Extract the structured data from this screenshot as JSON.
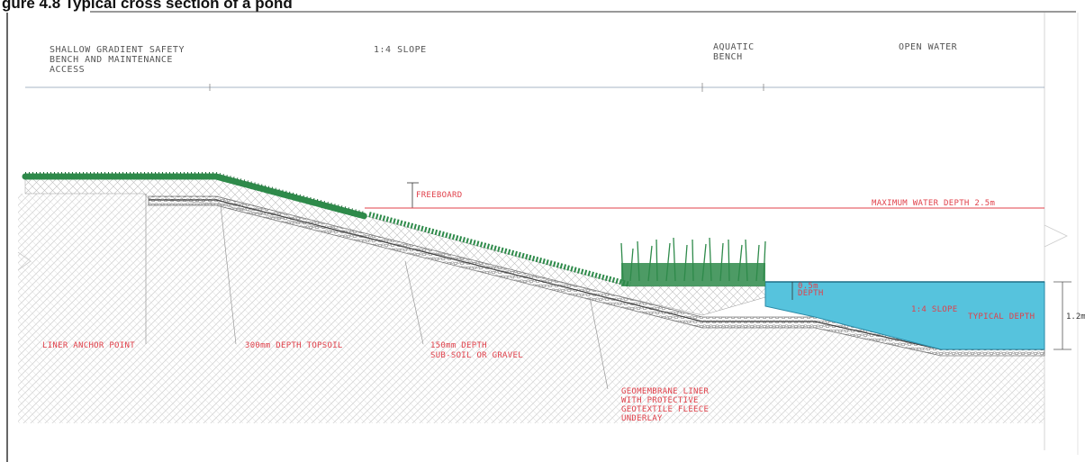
{
  "title": "gure 4.8 Typical cross section of a pond",
  "zones": {
    "safety_bench": [
      "SHALLOW GRADIENT SAFETY",
      "BENCH AND MAINTENANCE",
      "ACCESS"
    ],
    "slope": "1:4 SLOPE",
    "aquatic_bench": [
      "AQUATIC",
      "BENCH"
    ],
    "open_water": "OPEN WATER"
  },
  "labels": {
    "freeboard": "FREEBOARD",
    "max_water_depth": "MAXIMUM WATER DEPTH 2.5m",
    "liner_anchor": "LINER ANCHOR POINT",
    "topsoil": "300mm DEPTH TOPSOIL",
    "subsoil": [
      "150mm DEPTH",
      "SUB-SOIL OR GRAVEL"
    ],
    "geomembrane": [
      "GEOMEMBRANE LINER",
      "WITH PROTECTIVE",
      "GEOTEXTILE FLEECE",
      "UNDERLAY"
    ],
    "bench_depth": [
      "0.5m",
      "DEPTH"
    ],
    "slope_inner": "1:4 SLOPE",
    "typical_depth": "TYPICAL DEPTH",
    "depth_value": "1.2m"
  },
  "colors": {
    "water": "#56c3dd",
    "vegetation": "#2e8a4a",
    "annotation_red": "#e0404a",
    "soil_hatch": "#cfcfcf",
    "gravel": "#9a9a9a"
  }
}
